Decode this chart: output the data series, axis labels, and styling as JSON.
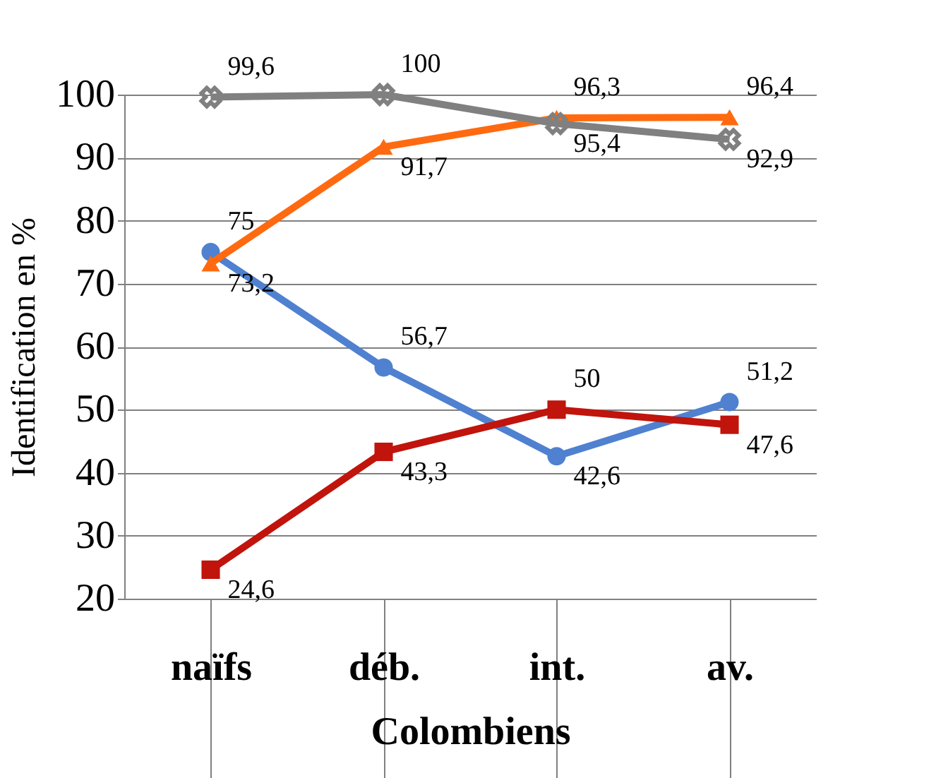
{
  "chart_data": {
    "type": "line",
    "xlabel": "Colombiens",
    "ylabel": "Identification en %",
    "categories": [
      "naïfs",
      "déb.",
      "int.",
      "av."
    ],
    "ylim": [
      20,
      100
    ],
    "yticks": [
      20,
      30,
      40,
      50,
      60,
      70,
      80,
      90,
      100
    ],
    "grid": "y",
    "line_style": "solid",
    "series": [
      {
        "color": "#4f81d0",
        "marker": "circle",
        "values": [
          75,
          56.7,
          42.6,
          51.2
        ],
        "value_labels": [
          "75",
          "56,7",
          "42,6",
          "51,2"
        ]
      },
      {
        "color": "#c0140c",
        "marker": "square",
        "values": [
          24.6,
          43.3,
          50,
          47.6
        ],
        "value_labels": [
          "24,6",
          "43,3",
          "50",
          "47,6"
        ]
      },
      {
        "color": "#ff6a10",
        "marker": "triangle",
        "values": [
          73.2,
          91.7,
          96.3,
          96.4
        ],
        "value_labels": [
          "73,2",
          "91,7",
          "96,3",
          "96,4"
        ]
      },
      {
        "color": "#808080",
        "marker": "cross",
        "values": [
          99.6,
          100,
          95.4,
          92.9
        ],
        "value_labels": [
          "99,6",
          "100",
          "95,4",
          "92,9"
        ]
      }
    ]
  }
}
